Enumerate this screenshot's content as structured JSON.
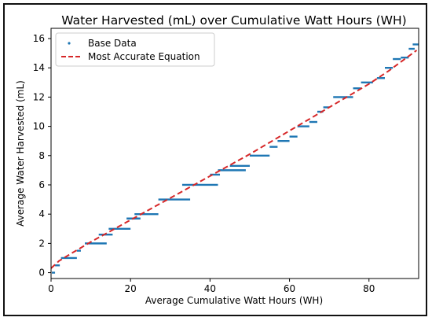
{
  "chart_data": {
    "type": "scatter",
    "title": "Water Harvested (mL) over Cumulative Watt Hours (WH)",
    "xlabel": "Average Cumulative Watt Hours (WH)",
    "ylabel": "Average Water Harvested (mL)",
    "xlim": [
      0,
      92.5
    ],
    "ylim": [
      -0.4,
      16.7
    ],
    "xticks": [
      0,
      20,
      40,
      60,
      80
    ],
    "yticks": [
      0,
      2,
      4,
      6,
      8,
      10,
      12,
      14,
      16
    ],
    "grid": false,
    "legend_position": "top-left",
    "series": [
      {
        "name": "Base Data",
        "kind": "points",
        "color": "#1f77b4",
        "steps": [
          {
            "x": [
              0.2,
              1.0
            ],
            "y": 0
          },
          {
            "x": [
              1.0,
              2.2
            ],
            "y": 0.5
          },
          {
            "x": [
              2.5,
              6.5
            ],
            "y": 1
          },
          {
            "x": [
              6.5,
              7.5
            ],
            "y": 1.5
          },
          {
            "x": [
              8.5,
              14.0
            ],
            "y": 2
          },
          {
            "x": [
              12.0,
              15.5
            ],
            "y": 2.6
          },
          {
            "x": [
              14.5,
              20.0
            ],
            "y": 3
          },
          {
            "x": [
              19.0,
              22.5
            ],
            "y": 3.7
          },
          {
            "x": [
              21.0,
              27.0
            ],
            "y": 4
          },
          {
            "x": [
              27.0,
              35.0
            ],
            "y": 5
          },
          {
            "x": [
              33.0,
              42.0
            ],
            "y": 6
          },
          {
            "x": [
              40.0,
              42.5
            ],
            "y": 6.7
          },
          {
            "x": [
              42.0,
              49.0
            ],
            "y": 7
          },
          {
            "x": [
              45.0,
              50.0
            ],
            "y": 7.3
          },
          {
            "x": [
              50.0,
              55.0
            ],
            "y": 8
          },
          {
            "x": [
              55.0,
              57.0
            ],
            "y": 8.6
          },
          {
            "x": [
              57.0,
              60.0
            ],
            "y": 9
          },
          {
            "x": [
              60.0,
              62.0
            ],
            "y": 9.3
          },
          {
            "x": [
              62.0,
              65.0
            ],
            "y": 10
          },
          {
            "x": [
              65.0,
              67.0
            ],
            "y": 10.3
          },
          {
            "x": [
              67.0,
              68.5
            ],
            "y": 11
          },
          {
            "x": [
              68.5,
              70.0
            ],
            "y": 11.3
          },
          {
            "x": [
              71.0,
              76.0
            ],
            "y": 12
          },
          {
            "x": [
              76.0,
              78.0
            ],
            "y": 12.6
          },
          {
            "x": [
              78.0,
              81.0
            ],
            "y": 13
          },
          {
            "x": [
              82.0,
              84.0
            ],
            "y": 13.3
          },
          {
            "x": [
              84.0,
              86.0
            ],
            "y": 14
          },
          {
            "x": [
              86.0,
              88.0
            ],
            "y": 14.6
          },
          {
            "x": [
              88.0,
              90.0
            ],
            "y": 14.7
          },
          {
            "x": [
              90.0,
              91.5
            ],
            "y": 15.3
          },
          {
            "x": [
              91.0,
              92.5
            ],
            "y": 15.6
          }
        ]
      },
      {
        "name": "Most Accurate Equation",
        "kind": "line",
        "style": "dashed",
        "color": "#d62728",
        "x": [
          0,
          2,
          5,
          10,
          15,
          20,
          30,
          40,
          50,
          60,
          70,
          80,
          85,
          92
        ],
        "y": [
          0.3,
          0.8,
          1.3,
          2.1,
          2.85,
          3.6,
          5.1,
          6.6,
          8.1,
          9.7,
          11.3,
          12.9,
          13.8,
          15.2
        ]
      }
    ]
  }
}
